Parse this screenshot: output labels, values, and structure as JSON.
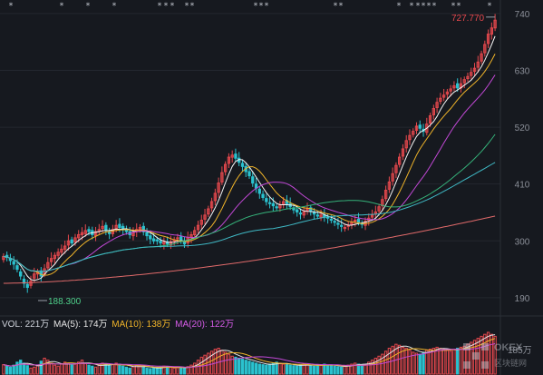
{
  "chart_data": {
    "type": "candlestick",
    "y_ticks": [
      "740",
      "630",
      "520",
      "410",
      "300",
      "190"
    ],
    "y_tick_values": [
      740,
      630,
      520,
      410,
      300,
      190
    ],
    "ylim": [
      160,
      752
    ],
    "high_label": "727.770",
    "low_label": "188.300",
    "closes": [
      270,
      268,
      262,
      255,
      245,
      232,
      218,
      210,
      222,
      236,
      240,
      232,
      246,
      258,
      266,
      272,
      278,
      284,
      290,
      300,
      296,
      306,
      312,
      316,
      320,
      318,
      312,
      318,
      322,
      328,
      320,
      314,
      322,
      330,
      326,
      322,
      318,
      312,
      316,
      322,
      326,
      318,
      310,
      304,
      300,
      300,
      296,
      298,
      294,
      298,
      302,
      306,
      300,
      294,
      306,
      312,
      320,
      330,
      340,
      350,
      362,
      376,
      392,
      412,
      432,
      448,
      462,
      466,
      460,
      452,
      444,
      434,
      426,
      412,
      402,
      392,
      384,
      376,
      372,
      368,
      364,
      370,
      376,
      372,
      366,
      360,
      356,
      352,
      356,
      362,
      358,
      352,
      348,
      350,
      346,
      344,
      340,
      336,
      332,
      328,
      326,
      330,
      336,
      340,
      336,
      332,
      338,
      344,
      350,
      356,
      366,
      380,
      398,
      414,
      430,
      446,
      462,
      478,
      494,
      504,
      512,
      522,
      518,
      512,
      526,
      542,
      556,
      568,
      576,
      582,
      588,
      594,
      600,
      596,
      604,
      612,
      618,
      626,
      634,
      646,
      662,
      680,
      700,
      712,
      727
    ],
    "opens": [
      264,
      272,
      266,
      260,
      252,
      240,
      226,
      216,
      214,
      228,
      236,
      242,
      236,
      248,
      260,
      266,
      272,
      278,
      284,
      292,
      302,
      298,
      306,
      312,
      314,
      322,
      320,
      310,
      318,
      324,
      330,
      318,
      314,
      324,
      332,
      328,
      322,
      318,
      310,
      318,
      322,
      328,
      316,
      310,
      304,
      302,
      300,
      294,
      298,
      292,
      300,
      304,
      308,
      298,
      296,
      306,
      312,
      322,
      332,
      342,
      352,
      364,
      378,
      394,
      414,
      434,
      450,
      462,
      468,
      460,
      450,
      444,
      434,
      424,
      410,
      400,
      390,
      382,
      374,
      372,
      366,
      364,
      372,
      378,
      372,
      364,
      360,
      354,
      350,
      358,
      364,
      356,
      350,
      346,
      350,
      346,
      342,
      338,
      334,
      330,
      324,
      328,
      332,
      338,
      342,
      334,
      330,
      340,
      346,
      352,
      358,
      368,
      382,
      400,
      416,
      432,
      448,
      464,
      480,
      496,
      506,
      514,
      524,
      516,
      510,
      528,
      544,
      558,
      570,
      578,
      584,
      590,
      596,
      604,
      596,
      606,
      614,
      620,
      628,
      636,
      648,
      664,
      682,
      700,
      712
    ]
  },
  "volume_panel": {
    "label": "VOL: 221万",
    "ma5": "MA(5): 174万",
    "ma10": "MA(10): 138万",
    "ma20": "MA(20): 122万",
    "right_label": "185万",
    "volumes": [
      95,
      80,
      70,
      90,
      120,
      140,
      110,
      85,
      60,
      70,
      90,
      130,
      160,
      140,
      110,
      90,
      80,
      100,
      120,
      110,
      90,
      100,
      120,
      140,
      110,
      90,
      80,
      70,
      90,
      110,
      100,
      85,
      95,
      110,
      100,
      80,
      70,
      60,
      75,
      90,
      85,
      70,
      60,
      55,
      60,
      65,
      70,
      80,
      75,
      70,
      60,
      65,
      70,
      60,
      75,
      90,
      110,
      140,
      170,
      190,
      210,
      230,
      250,
      260,
      240,
      220,
      200,
      180,
      170,
      160,
      150,
      140,
      130,
      120,
      110,
      100,
      95,
      90,
      100,
      110,
      120,
      110,
      100,
      95,
      90,
      85,
      80,
      90,
      100,
      95,
      85,
      80,
      90,
      95,
      100,
      90,
      85,
      80,
      75,
      70,
      80,
      90,
      100,
      110,
      100,
      90,
      100,
      120,
      140,
      160,
      180,
      200,
      230,
      260,
      280,
      300,
      290,
      270,
      260,
      240,
      220,
      210,
      200,
      220,
      240,
      250,
      260,
      270,
      260,
      250,
      240,
      230,
      250,
      260,
      270,
      280,
      300,
      320,
      340,
      360,
      380,
      400,
      420,
      400,
      380
    ]
  },
  "star_markers": "* * * *** ** **** ** * *****  ** *",
  "watermark": {
    "logo": "OKEX",
    "sub": "区块链网"
  },
  "colors": {
    "up": "#e5484d",
    "down": "#2bc2cf",
    "ma5": "#f5f5f5",
    "ma10": "#f0b429",
    "ma20": "#c248d6",
    "ma60": "#35b27a",
    "ma120": "#3fb8c4",
    "ma250": "#e06a6a",
    "vol_ma5": "#e5e5e5",
    "vol_ma10": "#f0b429",
    "vol_ma20": "#c248d6"
  }
}
